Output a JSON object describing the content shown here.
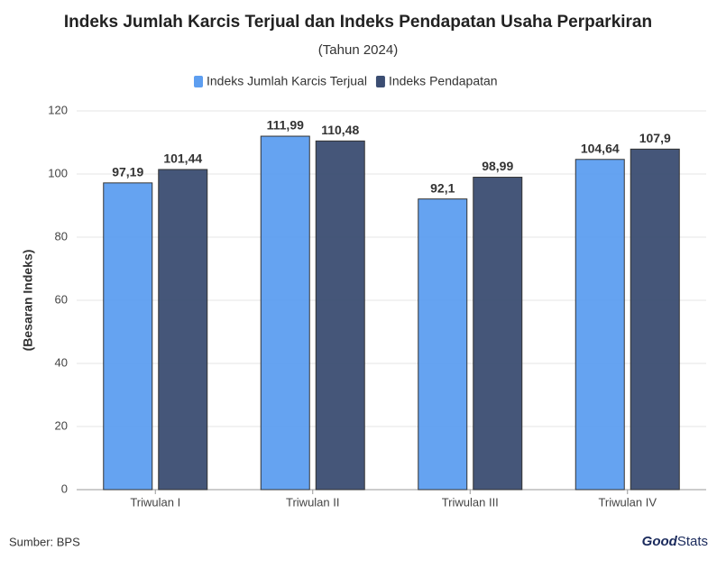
{
  "chart_data": {
    "type": "bar",
    "title": "Indeks Jumlah Karcis Terjual dan Indeks Pendapatan Usaha Perparkiran",
    "subtitle": "(Tahun 2024)",
    "y_label": "(Besaran Indeks)",
    "categories": [
      "Triwulan I",
      "Triwulan II",
      "Triwulan III",
      "Triwulan IV"
    ],
    "series": [
      {
        "name": "Indeks Jumlah Karcis Terjual",
        "color": "#5d9ef0",
        "values": [
          97.19,
          111.99,
          92.1,
          104.64
        ],
        "value_labels": [
          "97,19",
          "111,99",
          "92,1",
          "104,64"
        ]
      },
      {
        "name": "Indeks Pendapatan",
        "color": "#3b4d72",
        "values": [
          101.44,
          110.48,
          98.99,
          107.9
        ],
        "value_labels": [
          "101,44",
          "110,48",
          "98,99",
          "107,9"
        ]
      }
    ],
    "ylim": [
      0,
      120
    ],
    "yticks": [
      0,
      20,
      40,
      60,
      80,
      100,
      120
    ],
    "grid": true,
    "legend": "top",
    "source": "Sumber: BPS",
    "logo": {
      "bold": "Good",
      "light": "Stats"
    }
  }
}
